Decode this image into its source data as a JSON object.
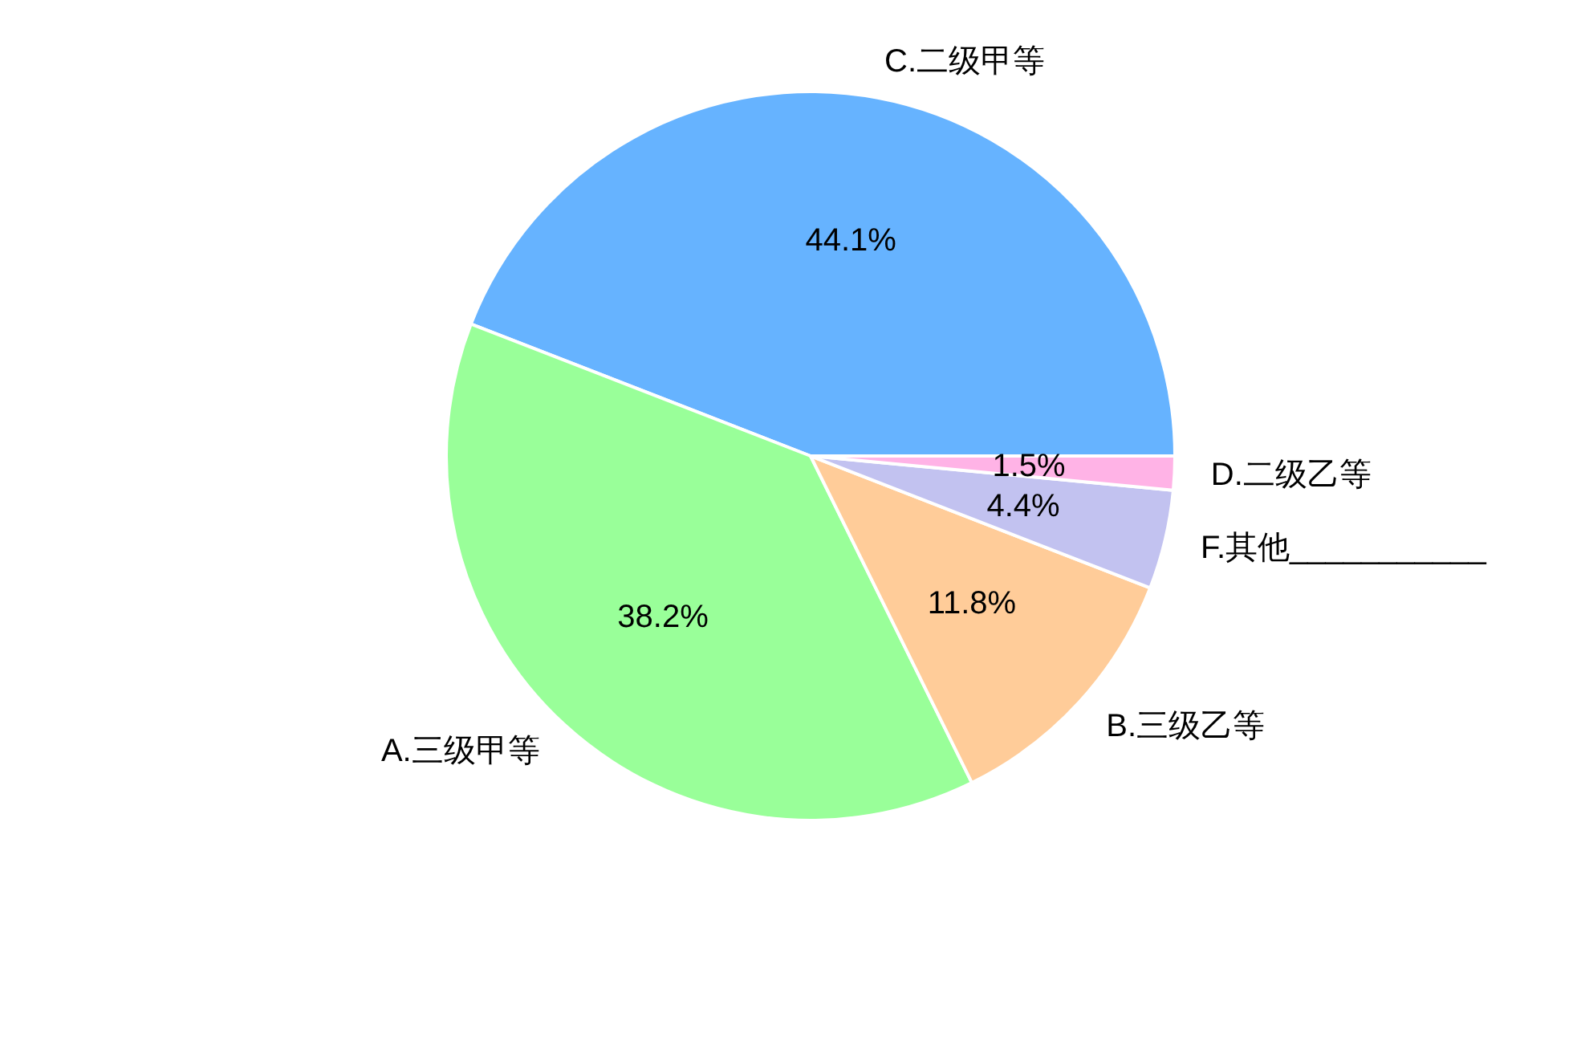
{
  "chart_data": {
    "type": "pie",
    "categories": [
      "C.二级甲等",
      "A.三级甲等",
      "B.三级乙等",
      "F.其他___________",
      "D.二级乙等"
    ],
    "values": [
      44.1,
      38.2,
      11.8,
      4.4,
      1.5
    ],
    "colors": [
      "#66b3ff",
      "#99ff99",
      "#ffcc99",
      "#c2c2f0",
      "#ffb3e6"
    ],
    "value_labels": [
      "44.1%",
      "38.2%",
      "11.8%",
      "4.4%",
      "1.5%"
    ]
  }
}
